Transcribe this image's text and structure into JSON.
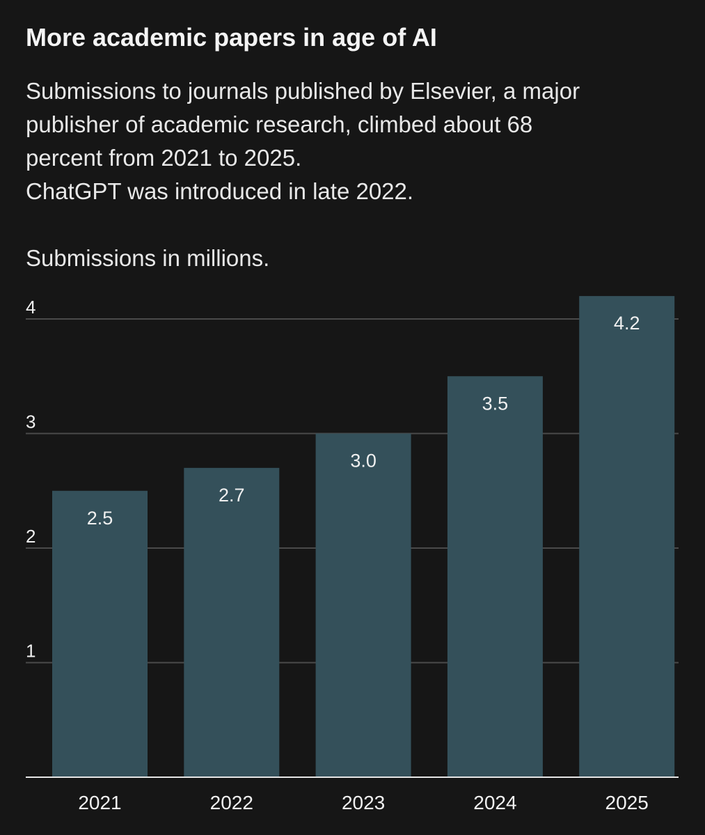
{
  "title": "More academic papers in age of AI",
  "subtitle_lines": [
    "Submissions to journals published by Elsevier, a major",
    "publisher of academic research, climbed about 68",
    "percent from 2021 to 2025.",
    "ChatGPT was introduced in late 2022."
  ],
  "unit_label": "Submissions in millions.",
  "colors": {
    "background": "#161616",
    "bar": "#34505a",
    "gridline": "#4a4a4a",
    "baseline": "#e6e6e6",
    "text": "#f0f0f0"
  },
  "chart_data": {
    "type": "bar",
    "categories": [
      "2021",
      "2022",
      "2023",
      "2024",
      "2025"
    ],
    "values": [
      2.5,
      2.7,
      3.0,
      3.5,
      4.2
    ],
    "data_labels": [
      "2.5",
      "2.7",
      "3.0",
      "3.5",
      "4.2"
    ],
    "yticks": [
      1,
      2,
      3,
      4
    ],
    "ylim": [
      0,
      4.2
    ],
    "grid": true,
    "legend": "none"
  }
}
